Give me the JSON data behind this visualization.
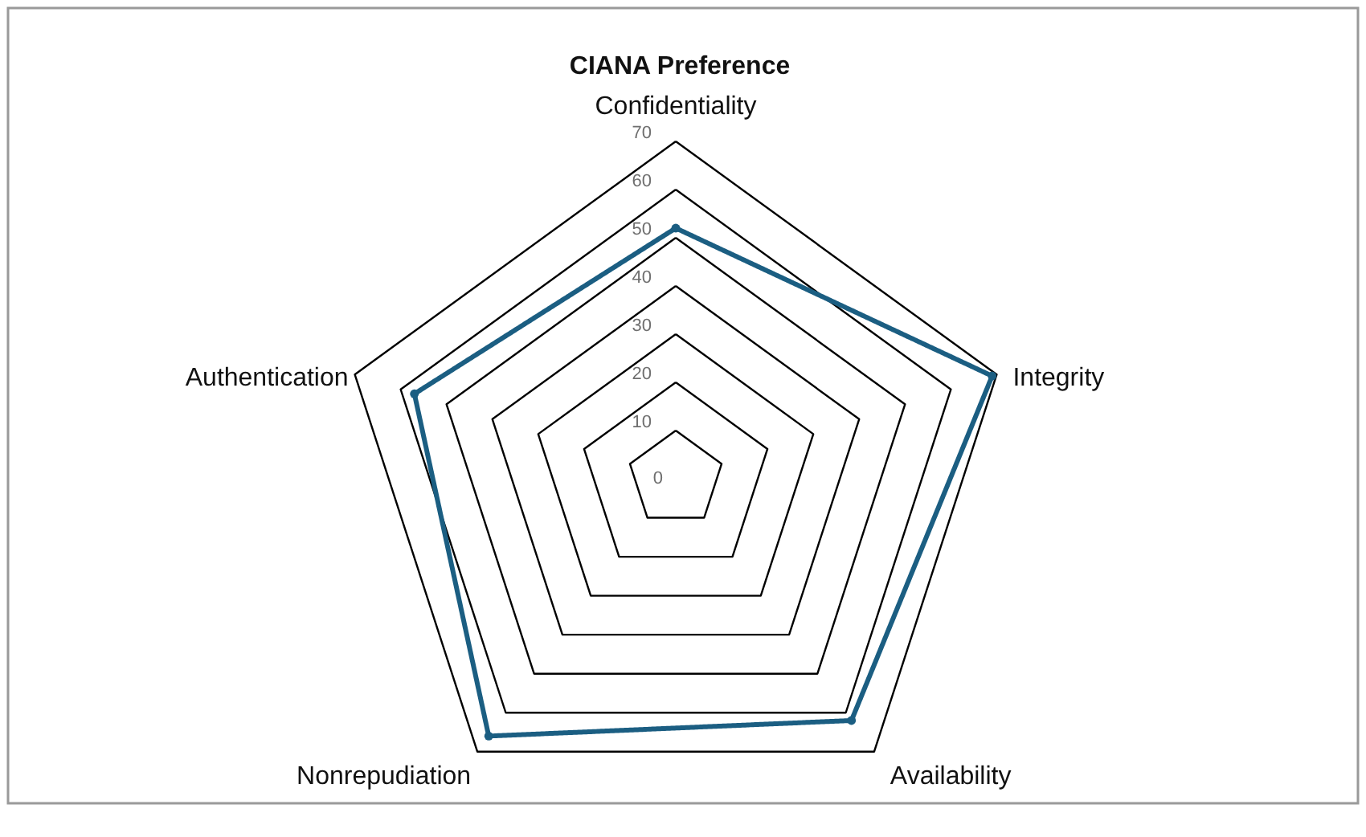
{
  "chart_data": {
    "type": "radar",
    "title": "CIANA Preference",
    "categories": [
      "Confidentiality",
      "Integrity",
      "Availability",
      "Nonrepudiation",
      "Authentication"
    ],
    "series": [
      {
        "color": "#1b5e82",
        "values": [
          52,
          69,
          62,
          66,
          57
        ]
      }
    ],
    "ylim": [
      0,
      70
    ],
    "yticks": [
      0,
      10,
      20,
      30,
      40,
      50,
      60,
      70
    ],
    "grid": true,
    "marker": "circle",
    "line_style": "solid"
  }
}
